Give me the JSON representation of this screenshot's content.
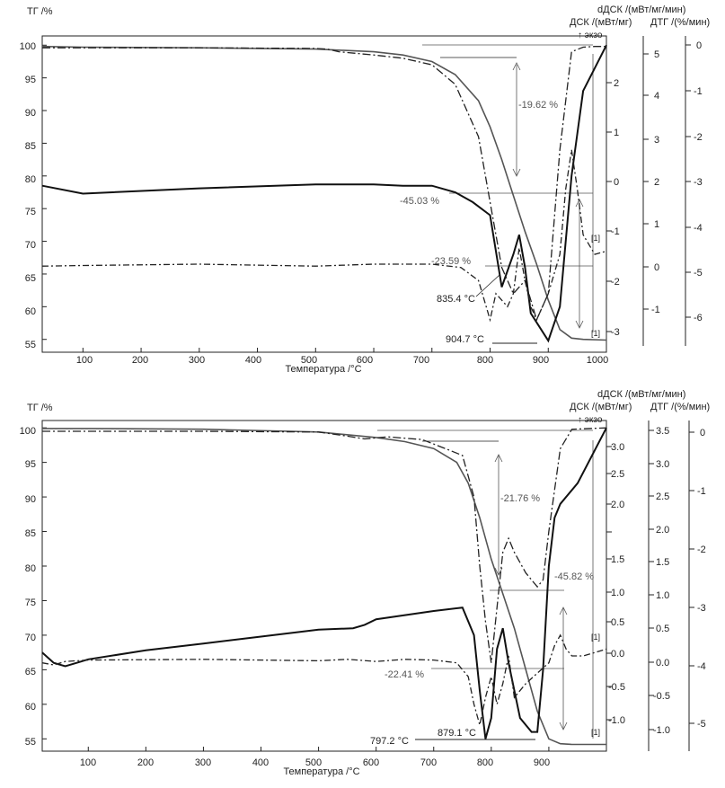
{
  "chart_data": [
    {
      "type": "line",
      "xlabel": "Температура /°C",
      "ylabel": "ТГ /%",
      "right_axis_labels": [
        "dДСК /(мВт/мг/мин)",
        "ДСК /(мВт/мг)",
        "ДТГ /(%/мин)"
      ],
      "exo_label": "↑ экзо",
      "xlim": [
        30,
        1000
      ],
      "xticks": [
        100,
        200,
        300,
        400,
        500,
        600,
        700,
        800,
        900,
        1000
      ],
      "ylim": [
        54,
        101
      ],
      "yticks": [
        55,
        60,
        65,
        70,
        75,
        80,
        85,
        90,
        95,
        100
      ],
      "ddsc_ticks": [
        "2",
        "1",
        "0",
        "-1",
        "-2",
        "-3"
      ],
      "dsc_ticks": [
        "5",
        "4",
        "3",
        "2",
        "1",
        "0",
        "-1"
      ],
      "dtg_ticks": [
        "0",
        "-1",
        "-2",
        "-3",
        "-4",
        "-5",
        "-6"
      ],
      "annotations": [
        "-19.62 %",
        "-45.03 %",
        "-23.59 %",
        "835.4 °C",
        "904.7 °C",
        "[1]",
        "[1]"
      ],
      "series": [
        {
          "x": [
            30,
            100,
            300,
            500,
            600,
            650,
            700,
            740,
            780,
            800,
            820,
            840,
            860,
            880,
            900,
            920,
            940,
            960,
            1000
          ],
          "values": [
            99.8,
            99.7,
            99.6,
            99.4,
            99.0,
            98.5,
            97.5,
            95.5,
            91.5,
            87.5,
            82.5,
            77.0,
            71.5,
            66.5,
            61.0,
            56.5,
            55.2,
            55.0,
            54.9
          ]
        },
        {
          "x": [
            30,
            100,
            300,
            500,
            600,
            650,
            700,
            740,
            770,
            800,
            820,
            840,
            850,
            860,
            870,
            900,
            920,
            940,
            960,
            980,
            1000
          ],
          "values": [
            78.5,
            77.3,
            78.1,
            78.7,
            78.7,
            78.5,
            78.5,
            77.5,
            76.0,
            74.0,
            63.0,
            68.0,
            71.0,
            66.0,
            59.0,
            54.8,
            60.0,
            80.0,
            93.0,
            96.5,
            100.0
          ]
        },
        {
          "x": [
            30,
            100,
            300,
            500,
            520,
            540,
            600,
            650,
            700,
            740,
            780,
            800,
            820,
            840,
            860,
            880,
            900,
            920,
            940,
            960,
            980,
            1000
          ],
          "values": [
            99.6,
            99.6,
            99.6,
            99.5,
            99.4,
            99.0,
            98.5,
            98.0,
            97.0,
            94.0,
            86.0,
            76.0,
            66.0,
            62.0,
            64.0,
            58.0,
            62.0,
            84.0,
            99.0,
            99.7,
            99.8,
            99.8
          ]
        },
        {
          "x": [
            30,
            100,
            300,
            500,
            600,
            700,
            750,
            780,
            800,
            810,
            820,
            830,
            840,
            850,
            860,
            870,
            880,
            900,
            920,
            930,
            940,
            950,
            960,
            980,
            1000
          ],
          "values": [
            66.2,
            66.3,
            66.5,
            66.2,
            66.5,
            66.5,
            66.0,
            64.0,
            58.0,
            62.0,
            61.0,
            60.0,
            62.0,
            69.0,
            64.0,
            60.0,
            58.0,
            62.0,
            68.0,
            78.0,
            84.0,
            78.0,
            71.0,
            68.0,
            68.5
          ]
        }
      ]
    },
    {
      "type": "line",
      "xlabel": "Температура /°C",
      "ylabel": "ТГ /%",
      "right_axis_labels": [
        "dДСК /(мВт/мг/мин)",
        "ДСК /(мВт/мг)",
        "ДТГ /(%/мин)"
      ],
      "exo_label": "↑ экзо",
      "xlim": [
        20,
        1000
      ],
      "xticks": [
        100,
        200,
        300,
        400,
        500,
        600,
        700,
        800,
        900
      ],
      "ylim": [
        54,
        100.8
      ],
      "yticks": [
        55,
        60,
        65,
        70,
        75,
        80,
        85,
        90,
        95,
        100
      ],
      "ddsc_ticks": [
        "3.0",
        "2.5",
        "2.0",
        "1.5",
        "1.0",
        "0.5",
        "0.0",
        "-0.5",
        "-1.0"
      ],
      "dsc_ticks": [
        "3.5",
        "3.0",
        "2.5",
        "2.0",
        "1.5",
        "1.0",
        "0.5",
        "0.0",
        "-0.5",
        "-1.0"
      ],
      "dtg_ticks": [
        "0",
        "-1",
        "-2",
        "-3",
        "-4",
        "-5"
      ],
      "annotations": [
        "-21.76 %",
        "-45.82 %",
        "-22.41 %",
        "879.1 °C",
        "797.2 °C",
        "[1]",
        "[1]"
      ],
      "series": [
        {
          "x": [
            20,
            100,
            300,
            500,
            600,
            650,
            700,
            740,
            760,
            780,
            800,
            820,
            840,
            860,
            880,
            900,
            920,
            940,
            1000
          ],
          "values": [
            99.9,
            99.9,
            99.8,
            99.4,
            98.6,
            98.0,
            97.0,
            95.0,
            92.0,
            87.0,
            81.0,
            76.0,
            71.0,
            65.0,
            59.0,
            55.0,
            54.3,
            54.2,
            54.2
          ]
        },
        {
          "x": [
            20,
            40,
            60,
            80,
            100,
            200,
            300,
            400,
            500,
            560,
            580,
            600,
            700,
            750,
            770,
            780,
            790,
            800,
            810,
            820,
            830,
            850,
            870,
            880,
            890,
            900,
            910,
            920,
            950,
            1000
          ],
          "values": [
            67.5,
            66.0,
            65.5,
            66.0,
            66.5,
            67.8,
            68.8,
            69.8,
            70.8,
            71.0,
            71.5,
            72.3,
            73.5,
            74.0,
            70.0,
            62.0,
            55.0,
            58.0,
            68.0,
            71.0,
            66.0,
            58.0,
            56.0,
            56.0,
            65.0,
            80.0,
            87.0,
            89.0,
            92.0,
            100.0
          ]
        },
        {
          "x": [
            20,
            100,
            300,
            500,
            550,
            580,
            620,
            680,
            720,
            750,
            770,
            780,
            790,
            800,
            810,
            820,
            830,
            840,
            860,
            880,
            890,
            900,
            920,
            940,
            1000
          ],
          "values": [
            99.5,
            99.5,
            99.5,
            99.4,
            98.8,
            98.4,
            98.7,
            98.3,
            97.0,
            96.0,
            90.0,
            80.0,
            72.0,
            66.0,
            74.0,
            82.0,
            84.0,
            82.0,
            79.0,
            77.0,
            78.0,
            85.0,
            97.0,
            99.8,
            100.0
          ]
        },
        {
          "x": [
            20,
            40,
            60,
            100,
            300,
            500,
            550,
            600,
            650,
            700,
            740,
            760,
            770,
            780,
            790,
            800,
            810,
            820,
            830,
            840,
            860,
            880,
            900,
            910,
            920,
            930,
            940,
            960,
            980,
            1000
          ],
          "values": [
            66.0,
            65.7,
            66.2,
            66.4,
            66.5,
            66.3,
            66.5,
            66.2,
            66.5,
            66.4,
            66.0,
            64.0,
            60.0,
            57.0,
            61.0,
            64.0,
            60.0,
            63.0,
            67.0,
            61.0,
            63.0,
            64.5,
            66.0,
            68.5,
            70.0,
            68.0,
            67.0,
            67.0,
            67.5,
            68.0
          ]
        }
      ]
    }
  ]
}
